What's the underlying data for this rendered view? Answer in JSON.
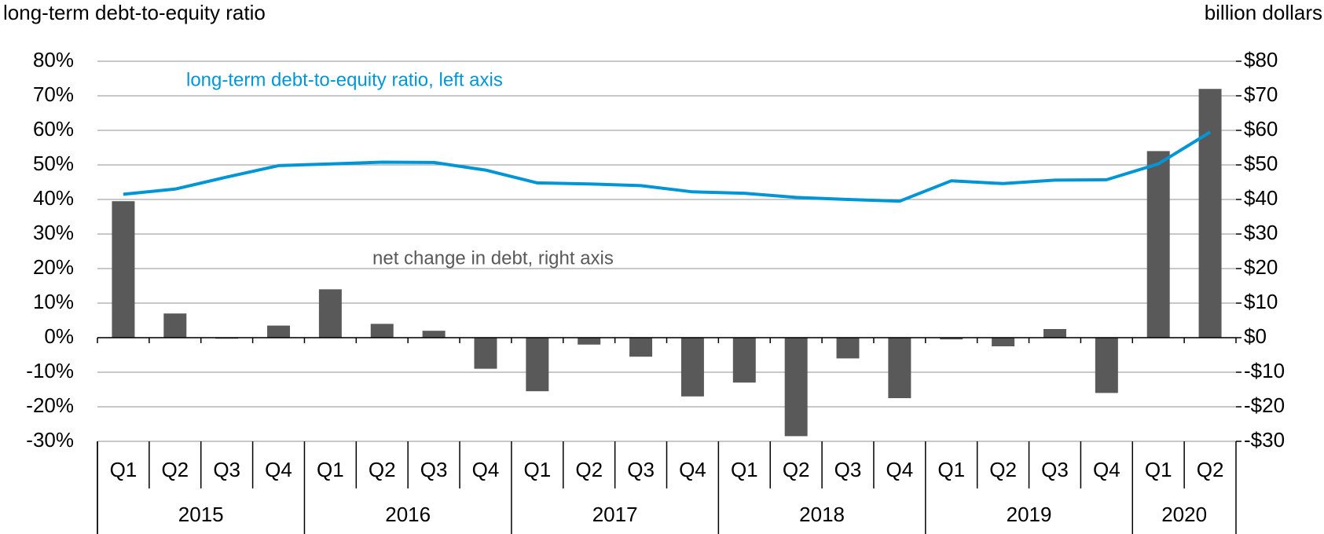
{
  "chart_data": {
    "type": "bar-line",
    "y_axis_label": "long-term debt-to-equity ratio",
    "y2_axis_label": "billion dollars",
    "categories": [
      "Q1",
      "Q2",
      "Q3",
      "Q4",
      "Q1",
      "Q2",
      "Q3",
      "Q4",
      "Q1",
      "Q2",
      "Q3",
      "Q4",
      "Q1",
      "Q2",
      "Q3",
      "Q4",
      "Q1",
      "Q2",
      "Q3",
      "Q4",
      "Q1",
      "Q2"
    ],
    "groups": [
      "2015",
      "2016",
      "2017",
      "2018",
      "2019",
      "2020"
    ],
    "series": [
      {
        "name": "net change in debt, right axis",
        "type": "bar",
        "axis": "y2",
        "color": "#595959",
        "values": [
          39.5,
          7,
          -0.3,
          3.5,
          14,
          4,
          2,
          -9,
          -15.5,
          -2,
          -5.5,
          -17,
          -13,
          -28.5,
          -6,
          -17.5,
          -0.5,
          -2.5,
          2.5,
          -16,
          54,
          72
        ]
      },
      {
        "name": "long-term debt-to-equity ratio, left axis",
        "type": "line",
        "axis": "y",
        "color": "#0096d6",
        "values": [
          41.5,
          43,
          46.5,
          49.8,
          50.3,
          50.8,
          50.7,
          48.5,
          44.8,
          44.5,
          44,
          42.2,
          41.8,
          40.6,
          40,
          39.5,
          45.4,
          44.6,
          45.6,
          45.7,
          50.3,
          59.5
        ]
      }
    ],
    "ylim": [
      -30,
      80
    ],
    "yticks": [
      {
        "value": -30,
        "label": "-30%"
      },
      {
        "value": -20,
        "label": "-20%"
      },
      {
        "value": -10,
        "label": "-10%"
      },
      {
        "value": 0,
        "label": "0%"
      },
      {
        "value": 10,
        "label": "10%"
      },
      {
        "value": 20,
        "label": "20%"
      },
      {
        "value": 30,
        "label": "30%"
      },
      {
        "value": 40,
        "label": "40%"
      },
      {
        "value": 50,
        "label": "50%"
      },
      {
        "value": 60,
        "label": "60%"
      },
      {
        "value": 70,
        "label": "70%"
      },
      {
        "value": 80,
        "label": "80%"
      }
    ],
    "y2lim": [
      -30,
      80
    ],
    "y2ticks": [
      {
        "value": -30,
        "label": "-$30"
      },
      {
        "value": -20,
        "label": "-$20"
      },
      {
        "value": -10,
        "label": "-$10"
      },
      {
        "value": 0,
        "label": "$0"
      },
      {
        "value": 10,
        "label": "$10"
      },
      {
        "value": 20,
        "label": "$20"
      },
      {
        "value": 30,
        "label": "$30"
      },
      {
        "value": 40,
        "label": "$40"
      },
      {
        "value": 50,
        "label": "$50"
      },
      {
        "value": 60,
        "label": "$60"
      },
      {
        "value": 70,
        "label": "$70"
      },
      {
        "value": 80,
        "label": "$80"
      }
    ],
    "grid": true
  }
}
